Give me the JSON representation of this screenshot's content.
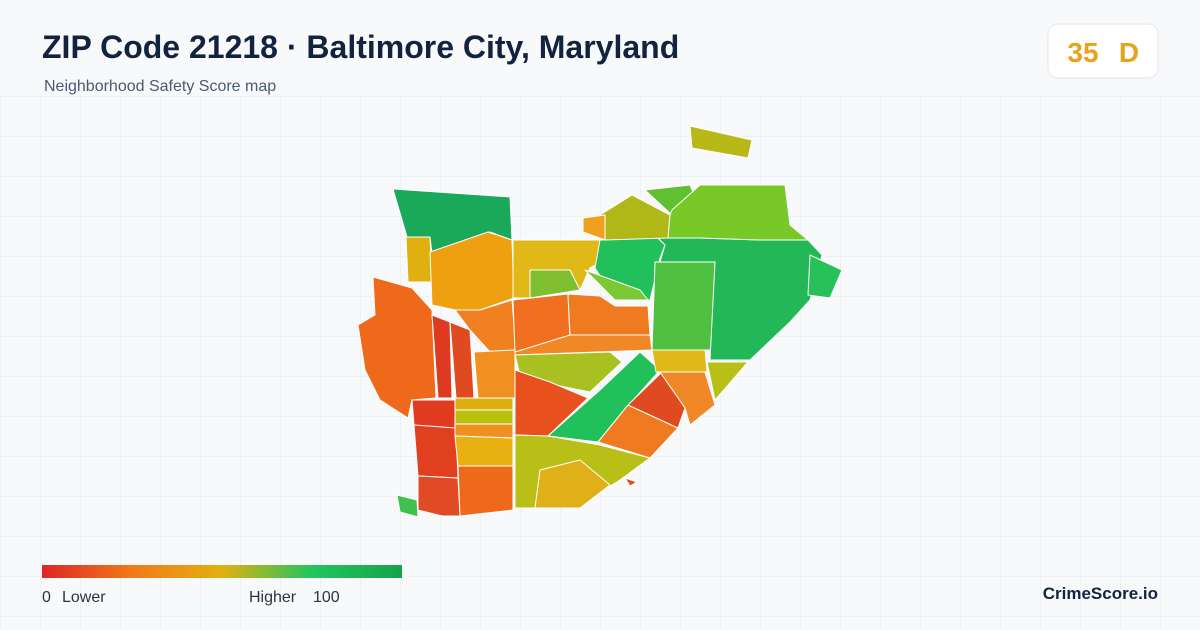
{
  "header": {
    "title": "ZIP Code 21218 · Baltimore City, Maryland",
    "subtitle": "Neighborhood Safety Score map"
  },
  "score": {
    "value": 35,
    "grade": "D"
  },
  "legend": {
    "min": 0,
    "min_label": "Lower",
    "max_label": "Higher",
    "max": 100
  },
  "footer": {
    "brand": "CrimeScore.io"
  }
}
